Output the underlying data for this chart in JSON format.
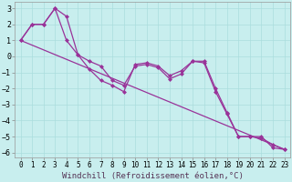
{
  "xlabel": "Windchill (Refroidissement éolien,°C)",
  "bg_color": "#c8eeee",
  "grid_color": "#aadddd",
  "line_color": "#993399",
  "xlim": [
    -0.5,
    23.5
  ],
  "ylim": [
    -6.3,
    3.4
  ],
  "yticks": [
    -6,
    -5,
    -4,
    -3,
    -2,
    -1,
    0,
    1,
    2,
    3
  ],
  "xticks": [
    0,
    1,
    2,
    3,
    4,
    5,
    6,
    7,
    8,
    9,
    10,
    11,
    12,
    13,
    14,
    15,
    16,
    17,
    18,
    19,
    20,
    21,
    22,
    23
  ],
  "line1_x": [
    0,
    1,
    2,
    3,
    4,
    5,
    6,
    7,
    8,
    9,
    10,
    11,
    12,
    13,
    14,
    15,
    16,
    17,
    18,
    19,
    20,
    21,
    22,
    23
  ],
  "line1_y": [
    1.0,
    2.0,
    2.0,
    3.0,
    2.5,
    0.1,
    -0.3,
    -0.6,
    -1.5,
    -1.8,
    -0.6,
    -0.5,
    -0.7,
    -1.4,
    -1.1,
    -0.3,
    -0.3,
    -2.0,
    -3.5,
    -5.0,
    -5.0,
    -5.0,
    -5.7,
    -5.8
  ],
  "line2_x": [
    0,
    1,
    2,
    3,
    4,
    5,
    6,
    7,
    8,
    9,
    10,
    11,
    12,
    13,
    14,
    15,
    16,
    17,
    18,
    19,
    20,
    21,
    22,
    23
  ],
  "line2_y": [
    1.0,
    2.0,
    2.0,
    3.0,
    1.0,
    0.1,
    -0.8,
    -1.5,
    -1.8,
    -2.2,
    -0.5,
    -0.4,
    -0.6,
    -1.2,
    -0.9,
    -0.3,
    -0.4,
    -2.2,
    -3.6,
    -5.0,
    -5.0,
    -5.1,
    -5.5,
    -5.8
  ],
  "line3_x": [
    0,
    23
  ],
  "line3_y": [
    1.0,
    -5.8
  ],
  "marker_size": 2.5,
  "lw": 0.9,
  "font_size": 6.5,
  "tick_font_size": 5.5
}
